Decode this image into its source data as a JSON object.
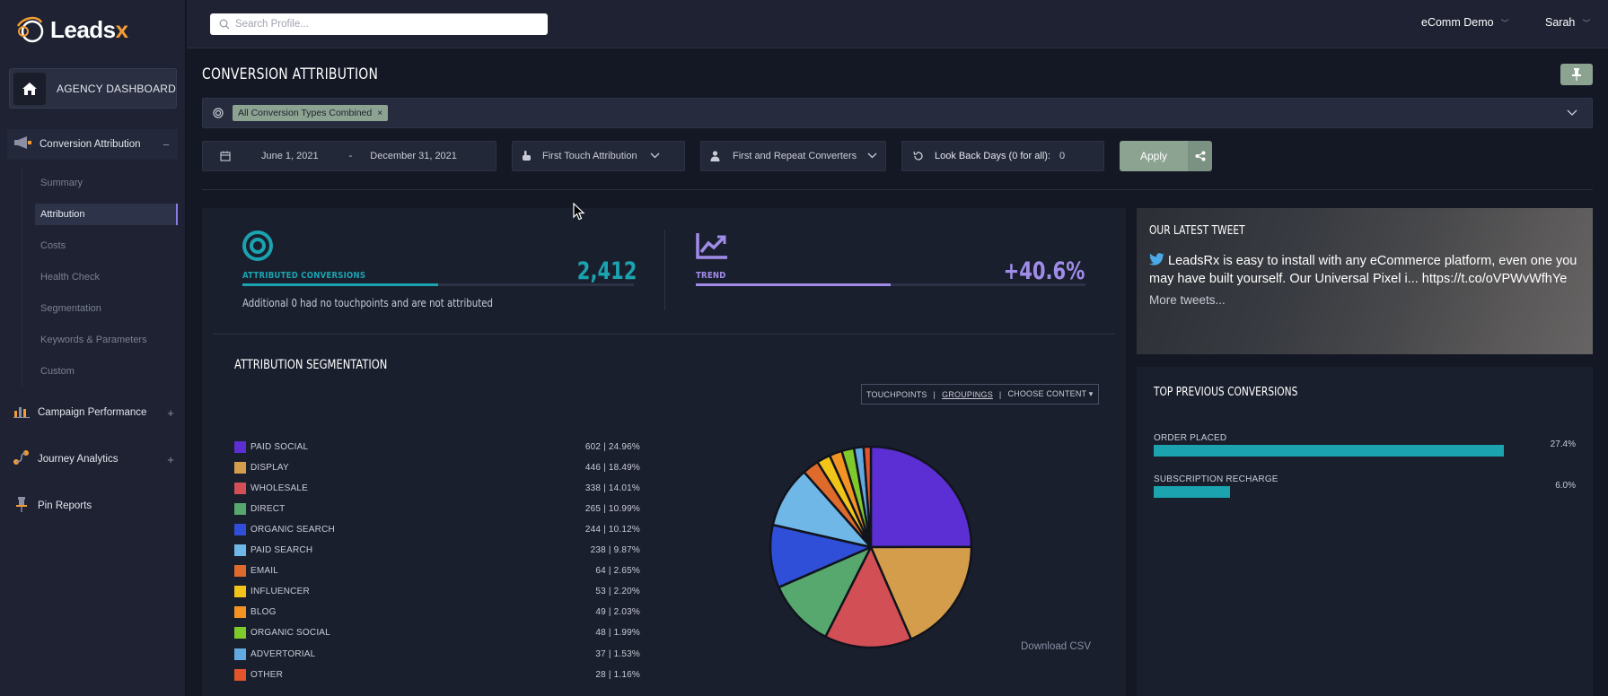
{
  "app": {
    "logo_text": "Leads",
    "logo_x": "x"
  },
  "sidebar": {
    "agency_label": "AGENCY DASHBOARD",
    "sections": [
      {
        "label": "Conversion Attribution",
        "toggle": "−"
      },
      {
        "label": "Campaign Performance",
        "toggle": "+"
      },
      {
        "label": "Journey Analytics",
        "toggle": "+"
      },
      {
        "label": "Pin Reports",
        "toggle": ""
      }
    ],
    "subitems": [
      "Summary",
      "Attribution",
      "Costs",
      "Health Check",
      "Segmentation",
      "Keywords & Parameters",
      "Custom"
    ]
  },
  "topbar": {
    "search_placeholder": "Search Profile...",
    "account": "eComm Demo",
    "user": "Sarah"
  },
  "page": {
    "title": "CONVERSION ATTRIBUTION",
    "filter_chip": "All Conversion Types Combined",
    "filter_chip_remove": "×"
  },
  "controls": {
    "start_date": "June 1, 2021",
    "date_sep": "-",
    "end_date": "December 31, 2021",
    "attribution_model": "First Touch Attribution",
    "converters": "First and Repeat Converters",
    "lookback_label": "Look Back Days (0 for all):",
    "lookback_value": "0",
    "apply_label": "Apply"
  },
  "kpis": {
    "attributed": {
      "label": "ATTRIBUTED CONVERSIONS",
      "value": "2,412",
      "note": "Additional 0 had no touchpoints and are not attributed",
      "progress": 0.5,
      "color": "#1ba3b0"
    },
    "trend": {
      "label": "TREND",
      "value": "+40.6%",
      "progress": 0.5,
      "color": "#a08ce8"
    }
  },
  "segmentation": {
    "title": "ATTRIBUTION SEGMENTATION",
    "tabs": [
      "TOUCHPOINTS",
      "GROUPINGS",
      "CHOOSE CONTENT ▾"
    ],
    "download": "Download CSV"
  },
  "chart_data": {
    "type": "pie",
    "title": "",
    "categories": [
      "PAID SOCIAL",
      "DISPLAY",
      "WHOLESALE",
      "DIRECT",
      "ORGANIC SEARCH",
      "PAID SEARCH",
      "EMAIL",
      "INFLUENCER",
      "BLOG",
      "ORGANIC SOCIAL",
      "ADVERTORIAL",
      "OTHER"
    ],
    "values": [
      602,
      446,
      338,
      265,
      244,
      238,
      64,
      53,
      49,
      48,
      37,
      28
    ],
    "percent_labels": [
      "602 | 24.96%",
      "446 | 18.49%",
      "338 | 14.01%",
      "265 | 10.99%",
      "244 | 10.12%",
      "238 | 9.87%",
      "64 | 2.65%",
      "53 | 2.20%",
      "49 | 2.03%",
      "48 | 1.99%",
      "37 | 1.53%",
      "28 | 1.16%"
    ],
    "colors": [
      "#5b2fd3",
      "#d39d4c",
      "#d14f55",
      "#57a86f",
      "#2f4fd8",
      "#6fb7e6",
      "#de6a2c",
      "#f0c419",
      "#f39323",
      "#7fc92a",
      "#62a9e2",
      "#e2552c"
    ],
    "legend": "left"
  },
  "tweet": {
    "title": "OUR LATEST TWEET",
    "body": "LeadsRx is easy to install with any eCommerce platform, even one you may have built yourself. Our Universal Pixel i... https://t.co/oVPWvWfhYe",
    "more": "More tweets..."
  },
  "previous": {
    "title": "TOP PREVIOUS CONVERSIONS",
    "items": [
      {
        "label": "ORDER PLACED",
        "pct": "27.4%",
        "fraction": 0.274
      },
      {
        "label": "SUBSCRIPTION RECHARGE",
        "pct": "6.0%",
        "fraction": 0.06
      }
    ]
  }
}
